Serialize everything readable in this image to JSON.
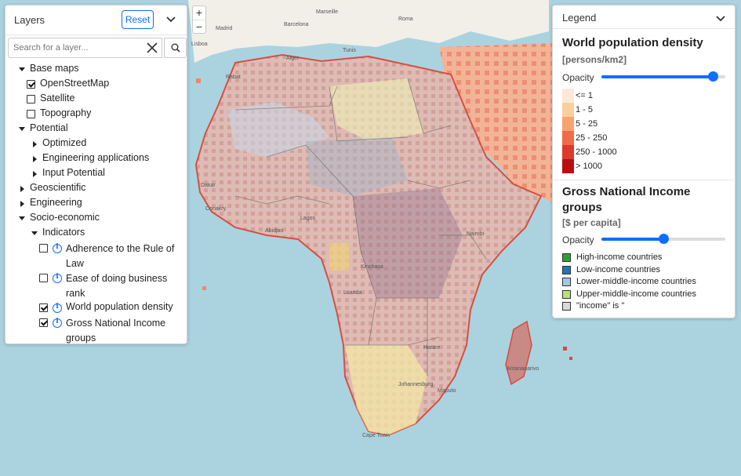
{
  "map": {
    "place_labels": [
      {
        "text": "Marseille"
      },
      {
        "text": "Barcelona"
      },
      {
        "text": "Roma"
      },
      {
        "text": "Madrid"
      },
      {
        "text": "Lisboa"
      },
      {
        "text": "Alger"
      },
      {
        "text": "Tunis"
      },
      {
        "text": "Rabat"
      },
      {
        "text": "Dakar"
      },
      {
        "text": "Conakry"
      },
      {
        "text": "Lagos"
      },
      {
        "text": "Abidjan"
      },
      {
        "text": "Kinshasa"
      },
      {
        "text": "Luanda"
      },
      {
        "text": "Nairobi"
      },
      {
        "text": "Harare"
      },
      {
        "text": "Johannesburg"
      },
      {
        "text": "Cape Town"
      },
      {
        "text": "Antananarivo"
      },
      {
        "text": "Maputo"
      }
    ]
  },
  "zoom": {
    "in": "+",
    "out": "−"
  },
  "layers": {
    "title": "Layers",
    "reset_label": "Reset",
    "search_placeholder": "Search for a layer...",
    "icons": {
      "collapse": "chevron-down-icon",
      "clear": "close-icon",
      "search": "search-icon",
      "info": "info-icon"
    },
    "tree": {
      "base_maps": "Base maps",
      "openstreetmap": "OpenStreetMap",
      "satellite": "Satellite",
      "topography": "Topography",
      "potential": "Potential",
      "optimized": "Optimized",
      "engineering_applications": "Engineering applications",
      "input_potential": "Input Potential",
      "geoscientific": "Geoscientific",
      "engineering": "Engineering",
      "socio_economic": "Socio-economic",
      "indicators": "Indicators",
      "rule_of_law": "Adherence to the Rule of Law",
      "ease_business": "Ease of doing business rank",
      "population_density": "World population density",
      "gni_groups": "Gross National Income groups"
    },
    "checked": {
      "openstreetmap": true,
      "satellite": false,
      "topography": false,
      "rule_of_law": false,
      "ease_business": false,
      "population_density": true,
      "gni_groups": true
    }
  },
  "legend": {
    "title": "Legend",
    "population": {
      "title": "World population density",
      "unit": "[persons/km2]",
      "opacity_label": "Opacity",
      "opacity": 0.9,
      "classes": [
        {
          "label": "<= 1",
          "color": "#fde9d9"
        },
        {
          "label": "1 - 5",
          "color": "#fbcf9c"
        },
        {
          "label": "5 - 25",
          "color": "#f6a36f"
        },
        {
          "label": "25 - 250",
          "color": "#ee6c47"
        },
        {
          "label": "250 - 1000",
          "color": "#dc3a2c"
        },
        {
          "label": "> 1000",
          "color": "#b80e0e"
        }
      ]
    },
    "gni": {
      "title": "Gross National Income groups",
      "unit": "[$ per capita]",
      "opacity_label": "Opacity",
      "opacity": 0.5,
      "classes": [
        {
          "label": "High-income countries",
          "color": "#2ca02c"
        },
        {
          "label": "Low-income countries",
          "color": "#1f77b4"
        },
        {
          "label": "Lower-middle-income countries",
          "color": "#9ecae1"
        },
        {
          "label": "Upper-middle-income countries",
          "color": "#b5e080"
        },
        {
          "label": "\"income\" is ''",
          "color": "#d9d9d9"
        }
      ]
    }
  }
}
